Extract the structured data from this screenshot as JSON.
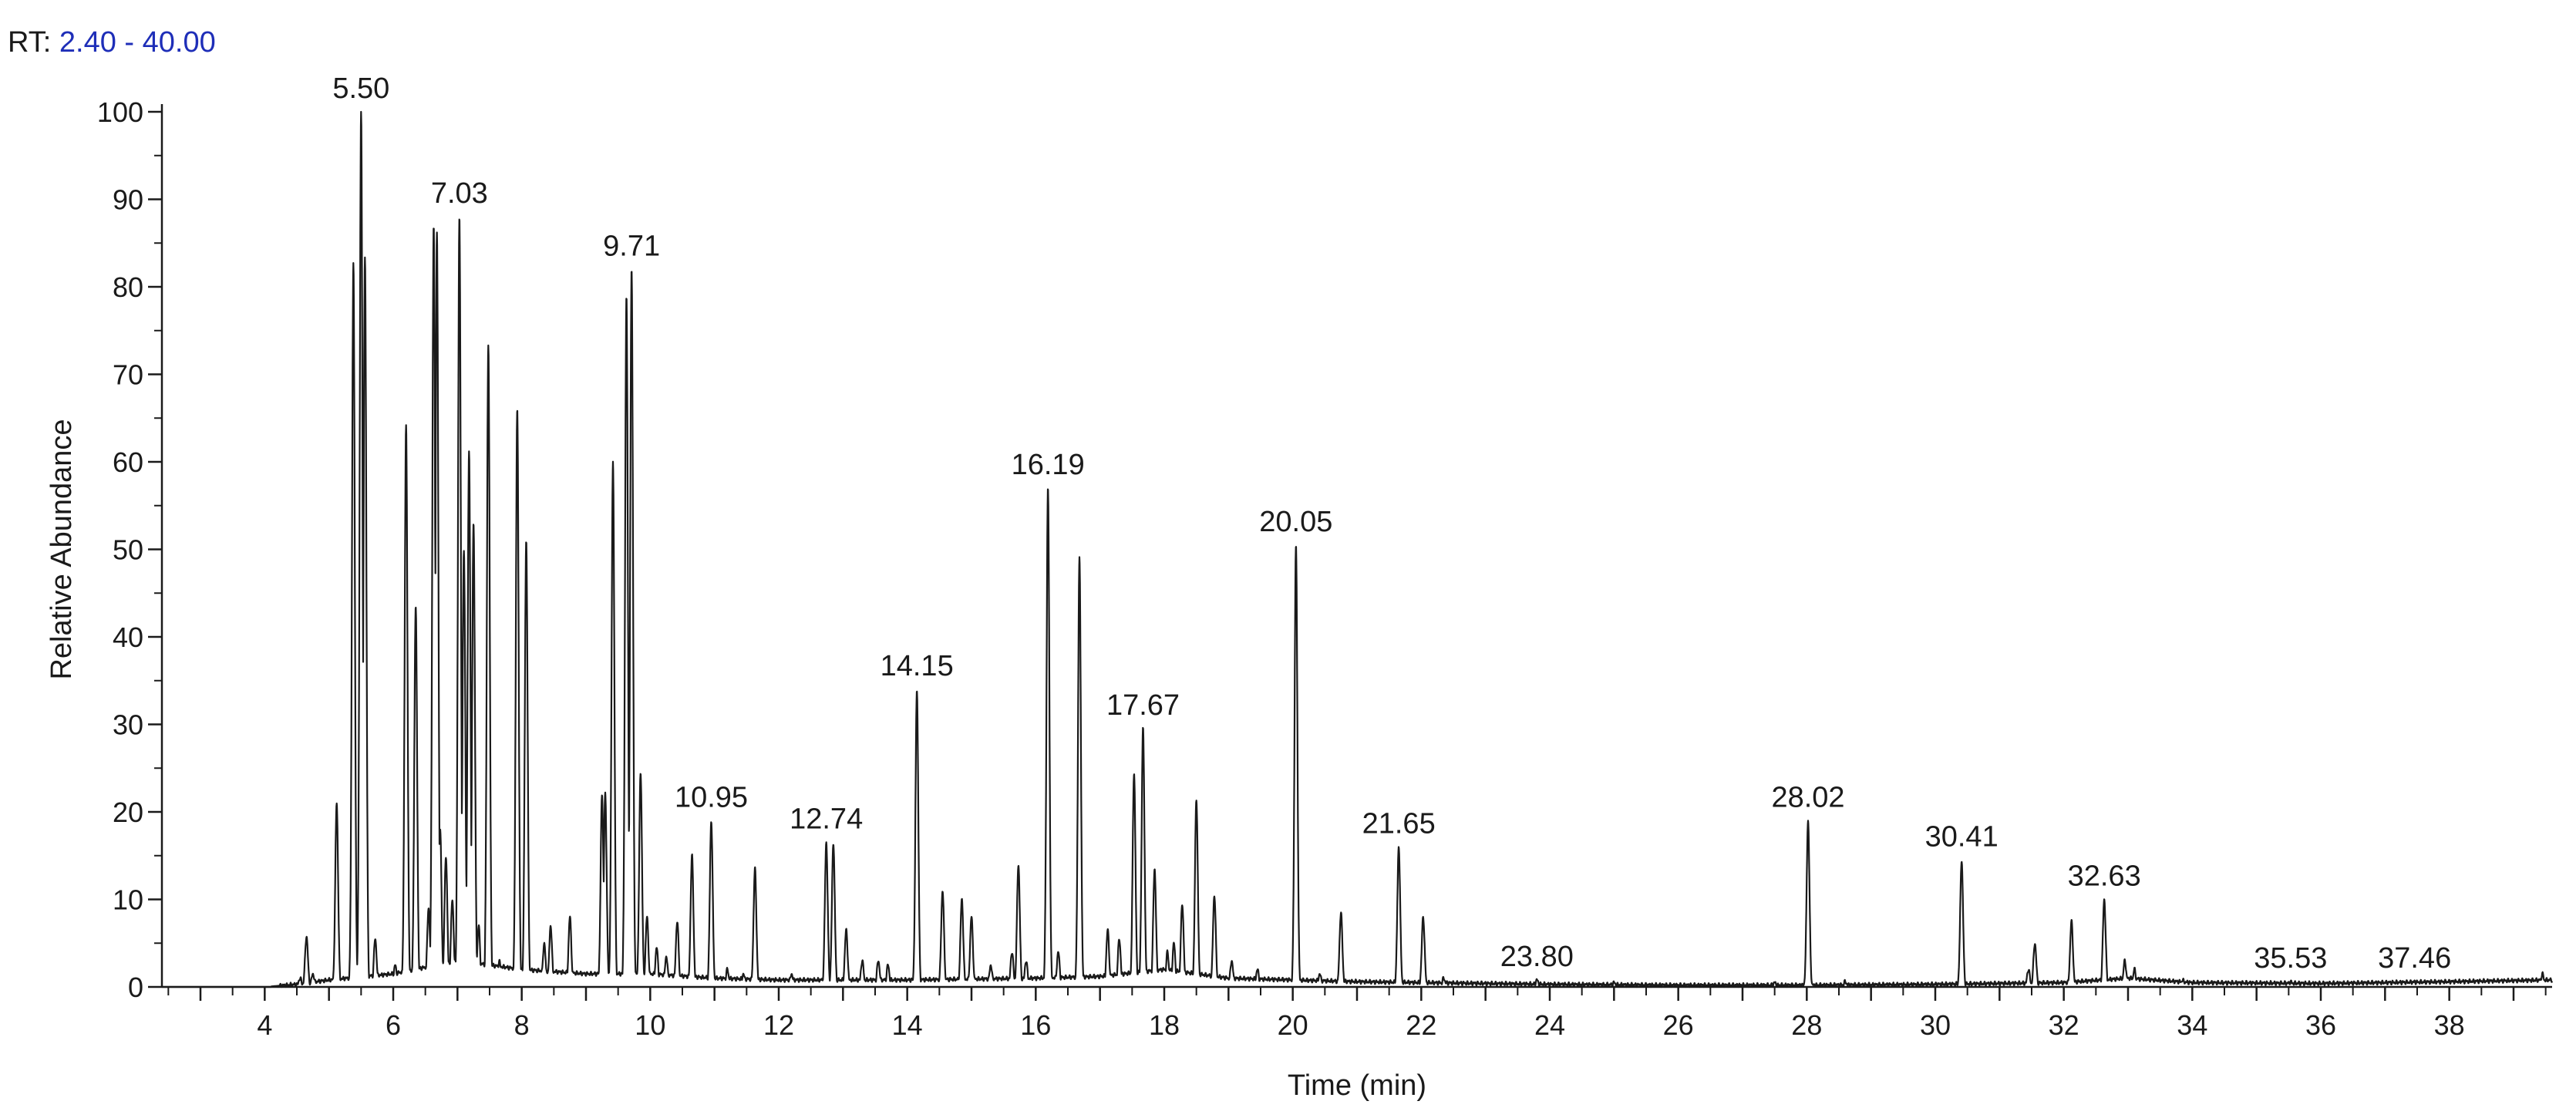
{
  "header": {
    "rt_label": "RT:",
    "rt_range": "2.40 - 40.00"
  },
  "chart_data": {
    "type": "line",
    "xlabel": "Time (min)",
    "ylabel": "Relative Abundance",
    "xlim": [
      2.4,
      39.6
    ],
    "ylim": [
      0,
      100
    ],
    "x_ticks": [
      4,
      6,
      8,
      10,
      12,
      14,
      16,
      18,
      20,
      22,
      24,
      26,
      28,
      30,
      32,
      34,
      36,
      38
    ],
    "x_tick_labels": [
      "4",
      "6",
      "8",
      "10",
      "12",
      "14",
      "16",
      "18",
      "20",
      "22",
      "24",
      "26",
      "28",
      "30",
      "32",
      "34",
      "36",
      "38"
    ],
    "y_ticks": [
      0,
      10,
      20,
      30,
      40,
      50,
      60,
      70,
      80,
      90,
      100
    ],
    "y_tick_labels": [
      "0",
      "10",
      "20",
      "30",
      "40",
      "50",
      "60",
      "70",
      "80",
      "90",
      "100"
    ],
    "grid": false,
    "line_color": "#1a1a1a",
    "baseline": [
      [
        2.4,
        0
      ],
      [
        4.0,
        0
      ],
      [
        4.5,
        0.3
      ],
      [
        5.0,
        0.8
      ],
      [
        6.0,
        1.5
      ],
      [
        7.0,
        3.0
      ],
      [
        8.0,
        2.0
      ],
      [
        9.0,
        1.5
      ],
      [
        10.0,
        1.5
      ],
      [
        11.0,
        1.0
      ],
      [
        12.0,
        0.8
      ],
      [
        13.0,
        0.8
      ],
      [
        14.0,
        0.8
      ],
      [
        16.0,
        1.0
      ],
      [
        17.0,
        1.2
      ],
      [
        18.0,
        2.0
      ],
      [
        19.0,
        1.0
      ],
      [
        20.0,
        0.8
      ],
      [
        21.0,
        0.6
      ],
      [
        22.0,
        0.5
      ],
      [
        24.0,
        0.3
      ],
      [
        26.0,
        0.2
      ],
      [
        28.0,
        0.2
      ],
      [
        30.0,
        0.3
      ],
      [
        32.0,
        0.5
      ],
      [
        33.0,
        1.0
      ],
      [
        34.0,
        0.5
      ],
      [
        36.0,
        0.4
      ],
      [
        38.0,
        0.6
      ],
      [
        39.6,
        0.8
      ]
    ],
    "peaks": [
      {
        "rt": 4.55,
        "height": 1.0
      },
      {
        "rt": 4.65,
        "height": 5.8
      },
      {
        "rt": 4.75,
        "height": 1.5
      },
      {
        "rt": 5.12,
        "height": 21
      },
      {
        "rt": 5.38,
        "height": 82.5
      },
      {
        "rt": 5.5,
        "height": 100
      },
      {
        "rt": 5.56,
        "height": 83.5
      },
      {
        "rt": 5.72,
        "height": 5.5
      },
      {
        "rt": 6.03,
        "height": 2.5
      },
      {
        "rt": 6.2,
        "height": 64
      },
      {
        "rt": 6.35,
        "height": 43.5
      },
      {
        "rt": 6.55,
        "height": 9
      },
      {
        "rt": 6.63,
        "height": 87
      },
      {
        "rt": 6.68,
        "height": 86
      },
      {
        "rt": 6.73,
        "height": 18
      },
      {
        "rt": 6.82,
        "height": 15
      },
      {
        "rt": 6.92,
        "height": 10
      },
      {
        "rt": 7.03,
        "height": 88
      },
      {
        "rt": 7.1,
        "height": 50
      },
      {
        "rt": 7.18,
        "height": 61
      },
      {
        "rt": 7.25,
        "height": 53
      },
      {
        "rt": 7.33,
        "height": 7
      },
      {
        "rt": 7.48,
        "height": 73.5
      },
      {
        "rt": 7.65,
        "height": 3
      },
      {
        "rt": 7.93,
        "height": 66
      },
      {
        "rt": 8.07,
        "height": 51
      },
      {
        "rt": 8.35,
        "height": 5
      },
      {
        "rt": 8.45,
        "height": 7
      },
      {
        "rt": 8.75,
        "height": 8
      },
      {
        "rt": 9.25,
        "height": 22
      },
      {
        "rt": 9.3,
        "height": 22
      },
      {
        "rt": 9.42,
        "height": 60
      },
      {
        "rt": 9.63,
        "height": 79
      },
      {
        "rt": 9.71,
        "height": 82
      },
      {
        "rt": 9.85,
        "height": 24.5
      },
      {
        "rt": 9.95,
        "height": 8
      },
      {
        "rt": 10.1,
        "height": 4.5
      },
      {
        "rt": 10.25,
        "height": 3.5
      },
      {
        "rt": 10.42,
        "height": 7.5
      },
      {
        "rt": 10.65,
        "height": 15
      },
      {
        "rt": 10.95,
        "height": 19
      },
      {
        "rt": 11.2,
        "height": 2
      },
      {
        "rt": 11.45,
        "height": 1.5
      },
      {
        "rt": 11.63,
        "height": 13.5
      },
      {
        "rt": 12.2,
        "height": 1.5
      },
      {
        "rt": 12.74,
        "height": 16.5
      },
      {
        "rt": 12.85,
        "height": 16.5
      },
      {
        "rt": 13.05,
        "height": 6.5
      },
      {
        "rt": 13.3,
        "height": 3
      },
      {
        "rt": 13.55,
        "height": 3
      },
      {
        "rt": 13.7,
        "height": 2.5
      },
      {
        "rt": 14.15,
        "height": 34
      },
      {
        "rt": 14.55,
        "height": 11
      },
      {
        "rt": 14.85,
        "height": 10
      },
      {
        "rt": 15.0,
        "height": 8
      },
      {
        "rt": 15.3,
        "height": 2.5
      },
      {
        "rt": 15.63,
        "height": 4
      },
      {
        "rt": 15.73,
        "height": 14
      },
      {
        "rt": 15.85,
        "height": 3
      },
      {
        "rt": 16.19,
        "height": 57
      },
      {
        "rt": 16.35,
        "height": 4
      },
      {
        "rt": 16.68,
        "height": 49
      },
      {
        "rt": 17.12,
        "height": 6.5
      },
      {
        "rt": 17.3,
        "height": 5.5
      },
      {
        "rt": 17.53,
        "height": 24.5
      },
      {
        "rt": 17.67,
        "height": 29.5
      },
      {
        "rt": 17.85,
        "height": 13.5
      },
      {
        "rt": 18.05,
        "height": 4
      },
      {
        "rt": 18.15,
        "height": 5
      },
      {
        "rt": 18.28,
        "height": 9.5
      },
      {
        "rt": 18.5,
        "height": 21.5
      },
      {
        "rt": 18.78,
        "height": 10.5
      },
      {
        "rt": 19.05,
        "height": 3
      },
      {
        "rt": 19.45,
        "height": 2
      },
      {
        "rt": 20.05,
        "height": 50.5
      },
      {
        "rt": 20.42,
        "height": 1.5
      },
      {
        "rt": 20.75,
        "height": 8.5
      },
      {
        "rt": 21.65,
        "height": 16
      },
      {
        "rt": 22.03,
        "height": 8
      },
      {
        "rt": 22.35,
        "height": 1
      },
      {
        "rt": 23.8,
        "height": 0.8
      },
      {
        "rt": 25.0,
        "height": 0.5
      },
      {
        "rt": 27.5,
        "height": 0.5
      },
      {
        "rt": 28.02,
        "height": 19
      },
      {
        "rt": 28.6,
        "height": 0.6
      },
      {
        "rt": 30.41,
        "height": 14.5
      },
      {
        "rt": 31.45,
        "height": 2
      },
      {
        "rt": 31.55,
        "height": 5
      },
      {
        "rt": 32.12,
        "height": 7.5
      },
      {
        "rt": 32.63,
        "height": 10
      },
      {
        "rt": 32.95,
        "height": 3
      },
      {
        "rt": 33.1,
        "height": 2
      },
      {
        "rt": 33.85,
        "height": 0.8
      },
      {
        "rt": 35.53,
        "height": 0.6
      },
      {
        "rt": 37.46,
        "height": 0.6
      },
      {
        "rt": 39.45,
        "height": 1.5
      }
    ],
    "annotations": [
      {
        "x": 5.5,
        "y": 100,
        "text": "5.50"
      },
      {
        "x": 7.03,
        "y": 88,
        "text": "7.03"
      },
      {
        "x": 9.71,
        "y": 82,
        "text": "9.71"
      },
      {
        "x": 10.95,
        "y": 19,
        "text": "10.95"
      },
      {
        "x": 12.74,
        "y": 16.5,
        "text": "12.74"
      },
      {
        "x": 14.15,
        "y": 34,
        "text": "14.15"
      },
      {
        "x": 16.19,
        "y": 57,
        "text": "16.19"
      },
      {
        "x": 17.67,
        "y": 29.5,
        "text": "17.67"
      },
      {
        "x": 20.05,
        "y": 50.5,
        "text": "20.05"
      },
      {
        "x": 21.65,
        "y": 16,
        "text": "21.65"
      },
      {
        "x": 23.8,
        "y": 0.8,
        "text": "23.80"
      },
      {
        "x": 28.02,
        "y": 19,
        "text": "28.02"
      },
      {
        "x": 30.41,
        "y": 14.5,
        "text": "30.41"
      },
      {
        "x": 32.63,
        "y": 10,
        "text": "32.63"
      },
      {
        "x": 35.53,
        "y": 0.6,
        "text": "35.53"
      },
      {
        "x": 37.46,
        "y": 0.6,
        "text": "37.46"
      }
    ]
  }
}
